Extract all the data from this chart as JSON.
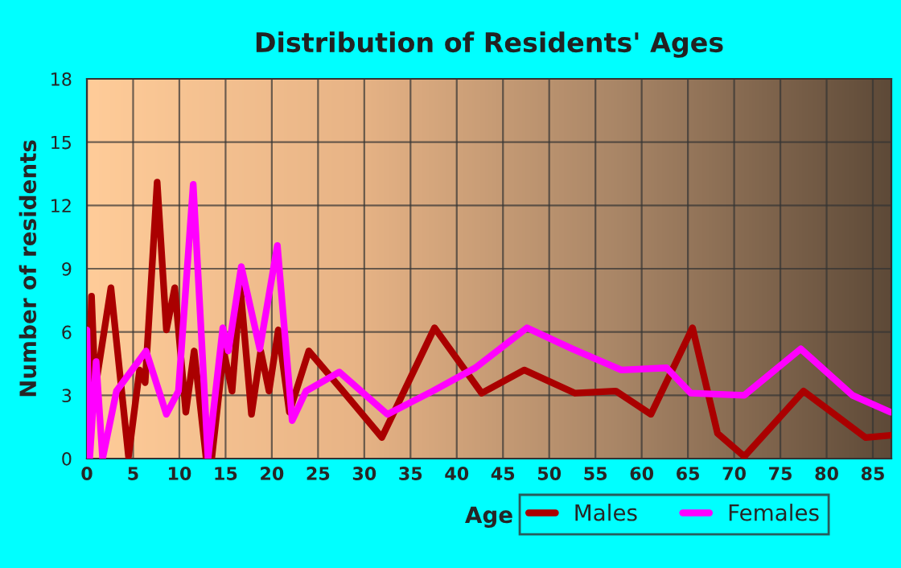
{
  "chart_data": {
    "type": "line",
    "title": "Distribution of Residents' Ages",
    "xlabel": "Age",
    "ylabel": "Number of residents",
    "xlim": [
      0,
      87
    ],
    "ylim": [
      0,
      18
    ],
    "xticks": [
      0,
      5,
      10,
      15,
      20,
      25,
      30,
      35,
      40,
      45,
      50,
      55,
      60,
      65,
      70,
      75,
      80,
      85
    ],
    "yticks": [
      0,
      3,
      6,
      9,
      12,
      15,
      18
    ],
    "grid": true,
    "legend": "bottom right",
    "marker": "none",
    "line_style": "solid",
    "series": [
      {
        "name": "Males",
        "color": "#aa0000",
        "x": [
          0,
          0.5,
          0.9,
          2.6,
          4.5,
          5.7,
          6.3,
          7.6,
          8.6,
          9.5,
          10.7,
          11.6,
          12.9,
          13.5,
          14.8,
          15.7,
          16.6,
          17.8,
          18.8,
          19.7,
          20.7,
          21.9,
          24,
          27.5,
          31.9,
          37.6,
          42.7,
          47.3,
          52.8,
          57.2,
          61,
          65.5,
          68.2,
          71.1,
          77.5,
          84.2,
          86.9
        ],
        "values": [
          0,
          7.7,
          3.3,
          8.1,
          0.1,
          4.2,
          3.6,
          13.1,
          6.1,
          8.1,
          2.2,
          5.1,
          0,
          0,
          5.1,
          3.2,
          8.1,
          2.1,
          5.1,
          3.2,
          6.1,
          2.2,
          5.1,
          3.3,
          1.0,
          6.2,
          3.1,
          4.2,
          3.1,
          3.2,
          2.1,
          6.2,
          1.2,
          0.1,
          3.2,
          1.0,
          1.1
        ]
      },
      {
        "name": "Females",
        "color": "#ff00ff",
        "x": [
          0,
          0.3,
          1.0,
          1.7,
          3.2,
          6.4,
          8.6,
          9.9,
          11.5,
          13.1,
          14.7,
          15.3,
          16.7,
          18.7,
          20.6,
          22.2,
          23.7,
          27.3,
          32.5,
          37.4,
          42,
          47.6,
          52.5,
          57.8,
          62.7,
          65.3,
          71.1,
          77.2,
          82.8,
          86.9
        ],
        "values": [
          6.1,
          0,
          4.6,
          0,
          3.2,
          5.1,
          2.1,
          3.2,
          13.0,
          0,
          6.2,
          5.1,
          9.1,
          5.2,
          10.1,
          1.8,
          3.2,
          4.1,
          2.1,
          3.2,
          4.3,
          6.2,
          5.2,
          4.2,
          4.3,
          3.1,
          3.0,
          5.2,
          3.0,
          2.2
        ]
      }
    ]
  }
}
